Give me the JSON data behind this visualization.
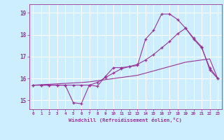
{
  "xlabel": "Windchill (Refroidissement éolien,°C)",
  "bg_color": "#cceeff",
  "grid_color": "#ffffff",
  "line_color": "#993399",
  "xlim": [
    -0.5,
    23.5
  ],
  "ylim": [
    14.6,
    19.4
  ],
  "yticks": [
    15,
    16,
    17,
    18,
    19
  ],
  "xticks": [
    0,
    1,
    2,
    3,
    4,
    5,
    6,
    7,
    8,
    9,
    10,
    11,
    12,
    13,
    14,
    15,
    16,
    17,
    18,
    19,
    20,
    21,
    22,
    23
  ],
  "line1_x": [
    0,
    1,
    2,
    3,
    4,
    5,
    6,
    7,
    8,
    9,
    10,
    11,
    12,
    13,
    14,
    15,
    16,
    17,
    18,
    19,
    20,
    21,
    22,
    23
  ],
  "line1_y": [
    15.7,
    15.7,
    15.7,
    15.7,
    15.7,
    14.9,
    14.85,
    15.7,
    15.65,
    16.1,
    16.5,
    16.5,
    16.55,
    16.6,
    17.8,
    18.2,
    18.95,
    18.95,
    18.7,
    18.3,
    17.8,
    17.4,
    16.5,
    16.0
  ],
  "line2_x": [
    0,
    1,
    2,
    3,
    4,
    5,
    6,
    7,
    8,
    9,
    10,
    11,
    12,
    13,
    14,
    15,
    16,
    17,
    18,
    19,
    20,
    21,
    22,
    23
  ],
  "line2_y": [
    15.7,
    15.7,
    15.7,
    15.7,
    15.7,
    15.7,
    15.7,
    15.7,
    15.82,
    16.05,
    16.25,
    16.45,
    16.55,
    16.65,
    16.85,
    17.1,
    17.4,
    17.7,
    18.05,
    18.3,
    17.85,
    17.45,
    16.4,
    16.0
  ],
  "line3_x": [
    0,
    1,
    2,
    3,
    4,
    5,
    6,
    7,
    8,
    9,
    10,
    11,
    12,
    13,
    14,
    15,
    16,
    17,
    18,
    19,
    20,
    21,
    22,
    23
  ],
  "line3_y": [
    15.7,
    15.72,
    15.74,
    15.76,
    15.78,
    15.8,
    15.82,
    15.85,
    15.9,
    15.95,
    16.0,
    16.05,
    16.1,
    16.15,
    16.25,
    16.35,
    16.45,
    16.55,
    16.65,
    16.75,
    16.8,
    16.85,
    16.9,
    16.0
  ]
}
